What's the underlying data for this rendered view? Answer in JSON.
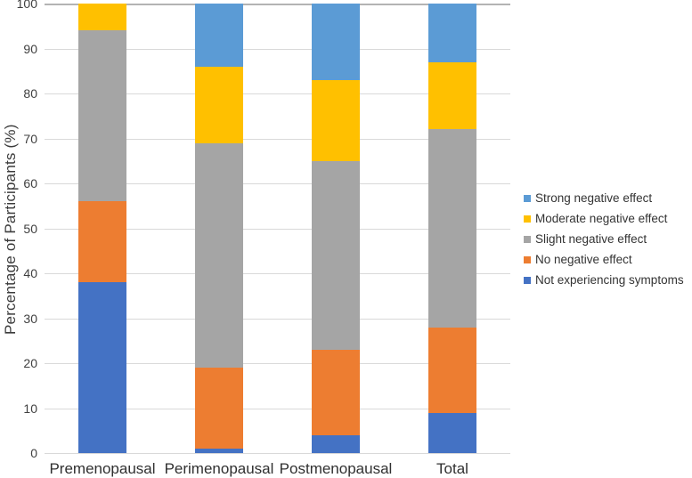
{
  "chart_data": {
    "type": "bar",
    "stacked": true,
    "orientation": "vertical",
    "title": "",
    "xlabel": "",
    "ylabel": "Percentage of Participants (%)",
    "ylim": [
      0,
      100
    ],
    "yticks": [
      0,
      10,
      20,
      30,
      40,
      50,
      60,
      70,
      80,
      90,
      100
    ],
    "grid": true,
    "gridline_color": "#d9d9d9",
    "background_color": "#ffffff",
    "legend_position": "right",
    "categories": [
      "Premenopausal",
      "Perimenopausal",
      "Postmenopausal",
      "Total"
    ],
    "series": [
      {
        "name": "Not experiencing symptoms",
        "color": "#4472C4",
        "values": [
          38,
          1,
          4,
          9
        ]
      },
      {
        "name": "No negative effect",
        "color": "#ED7D31",
        "values": [
          18,
          18,
          19,
          19
        ]
      },
      {
        "name": "Slight negative effect",
        "color": "#A5A5A5",
        "values": [
          38,
          50,
          42,
          44
        ]
      },
      {
        "name": "Moderate negative effect",
        "color": "#FFC000",
        "values": [
          6,
          17,
          18,
          15
        ]
      },
      {
        "name": "Strong negative effect",
        "color": "#5B9BD5",
        "values": [
          0,
          14,
          17,
          13
        ]
      }
    ],
    "legend_order_top_to_bottom": [
      "Strong negative effect",
      "Moderate negative effect",
      "Slight negative effect",
      "No negative effect",
      "Not experiencing symptoms"
    ]
  }
}
